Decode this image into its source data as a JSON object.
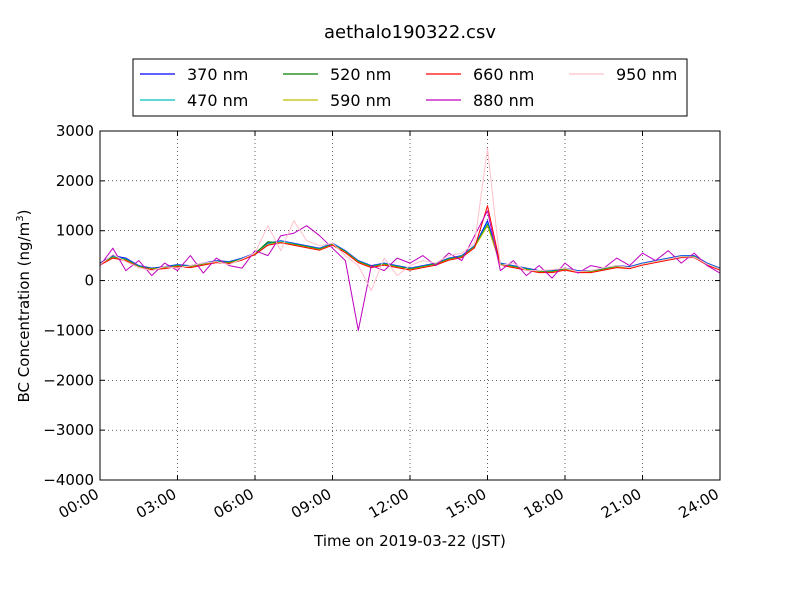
{
  "chart_data": {
    "type": "line",
    "title": "aethalo190322.csv",
    "xlabel": "Time on 2019-03-22 (JST)",
    "ylabel_main": "BC Concentration (ng/m",
    "ylabel_sup": "3",
    "ylabel_end": ")",
    "xlim": [
      "00:00",
      "24:00"
    ],
    "ylim": [
      -4000,
      3000
    ],
    "x_ticks": [
      "00:00",
      "03:00",
      "06:00",
      "09:00",
      "12:00",
      "15:00",
      "18:00",
      "21:00",
      "24:00"
    ],
    "y_ticks": [
      "3000",
      "2000",
      "1000",
      "0",
      "−1000",
      "−2000",
      "−3000",
      "−4000"
    ],
    "grid": true,
    "legend_position": "top-center",
    "x": [
      "00:00",
      "00:30",
      "01:00",
      "01:30",
      "02:00",
      "02:30",
      "03:00",
      "03:30",
      "04:00",
      "04:30",
      "05:00",
      "05:30",
      "06:00",
      "06:30",
      "07:00",
      "07:30",
      "08:00",
      "08:30",
      "09:00",
      "09:30",
      "10:00",
      "10:30",
      "11:00",
      "11:30",
      "12:00",
      "12:30",
      "13:00",
      "13:30",
      "14:00",
      "14:30",
      "15:00",
      "15:30",
      "16:00",
      "16:30",
      "17:00",
      "17:30",
      "18:00",
      "18:30",
      "19:00",
      "19:30",
      "20:00",
      "20:30",
      "21:00",
      "21:30",
      "22:00",
      "22:30",
      "23:00",
      "23:30",
      "24:00"
    ],
    "series": [
      {
        "name": "370 nm",
        "color": "#0000ff",
        "values": [
          350,
          500,
          450,
          300,
          250,
          280,
          320,
          300,
          350,
          400,
          380,
          450,
          550,
          750,
          800,
          750,
          700,
          650,
          750,
          600,
          400,
          300,
          350,
          300,
          250,
          300,
          350,
          450,
          500,
          700,
          1200,
          350,
          300,
          250,
          200,
          200,
          250,
          200,
          200,
          250,
          300,
          280,
          350,
          400,
          450,
          500,
          500,
          350,
          250
        ]
      },
      {
        "name": "470 nm",
        "color": "#00bfbf",
        "values": [
          340,
          480,
          430,
          290,
          240,
          270,
          310,
          290,
          340,
          390,
          370,
          440,
          540,
          740,
          790,
          740,
          690,
          640,
          740,
          590,
          390,
          290,
          340,
          290,
          240,
          290,
          340,
          440,
          490,
          690,
          1150,
          340,
          290,
          240,
          190,
          190,
          240,
          190,
          190,
          240,
          290,
          270,
          340,
          390,
          440,
          490,
          490,
          340,
          240
        ]
      },
      {
        "name": "520 nm",
        "color": "#008000",
        "values": [
          330,
          470,
          420,
          280,
          240,
          260,
          300,
          280,
          330,
          380,
          360,
          430,
          540,
          780,
          760,
          730,
          680,
          630,
          730,
          580,
          380,
          280,
          330,
          280,
          230,
          280,
          330,
          430,
          480,
          680,
          1120,
          330,
          280,
          230,
          180,
          180,
          230,
          180,
          180,
          230,
          280,
          260,
          330,
          380,
          430,
          480,
          480,
          330,
          230
        ]
      },
      {
        "name": "590 nm",
        "color": "#bfbf00",
        "values": [
          320,
          460,
          410,
          270,
          230,
          250,
          290,
          270,
          320,
          370,
          350,
          420,
          530,
          720,
          770,
          720,
          670,
          620,
          720,
          570,
          370,
          270,
          320,
          270,
          220,
          270,
          320,
          420,
          470,
          670,
          1100,
          320,
          270,
          220,
          170,
          170,
          220,
          170,
          170,
          220,
          270,
          250,
          320,
          370,
          420,
          470,
          470,
          320,
          220
        ]
      },
      {
        "name": "660 nm",
        "color": "#ff0000",
        "values": [
          310,
          450,
          400,
          260,
          220,
          240,
          280,
          260,
          310,
          360,
          340,
          410,
          520,
          710,
          760,
          710,
          660,
          610,
          710,
          560,
          360,
          260,
          310,
          260,
          210,
          260,
          310,
          410,
          460,
          660,
          1500,
          310,
          260,
          210,
          160,
          160,
          210,
          160,
          160,
          210,
          260,
          240,
          310,
          360,
          410,
          460,
          460,
          310,
          210
        ]
      },
      {
        "name": "880 nm",
        "color": "#bf00bf",
        "values": [
          300,
          650,
          200,
          400,
          100,
          350,
          200,
          500,
          150,
          450,
          300,
          250,
          600,
          500,
          900,
          950,
          1100,
          900,
          650,
          400,
          -1000,
          300,
          200,
          450,
          350,
          500,
          300,
          550,
          400,
          900,
          1400,
          200,
          400,
          100,
          300,
          50,
          350,
          150,
          300,
          250,
          450,
          300,
          550,
          400,
          600,
          350,
          550,
          300,
          150
        ]
      },
      {
        "name": "950 nm",
        "color": "#ffc0cb",
        "values": [
          320,
          520,
          380,
          260,
          200,
          280,
          250,
          300,
          350,
          380,
          320,
          430,
          550,
          1100,
          600,
          1200,
          800,
          700,
          750,
          500,
          300,
          -200,
          450,
          100,
          300,
          400,
          350,
          500,
          550,
          750,
          2650,
          300,
          350,
          200,
          200,
          220,
          250,
          180,
          200,
          260,
          300,
          260,
          330,
          380,
          430,
          480,
          470,
          330,
          230
        ]
      }
    ]
  }
}
